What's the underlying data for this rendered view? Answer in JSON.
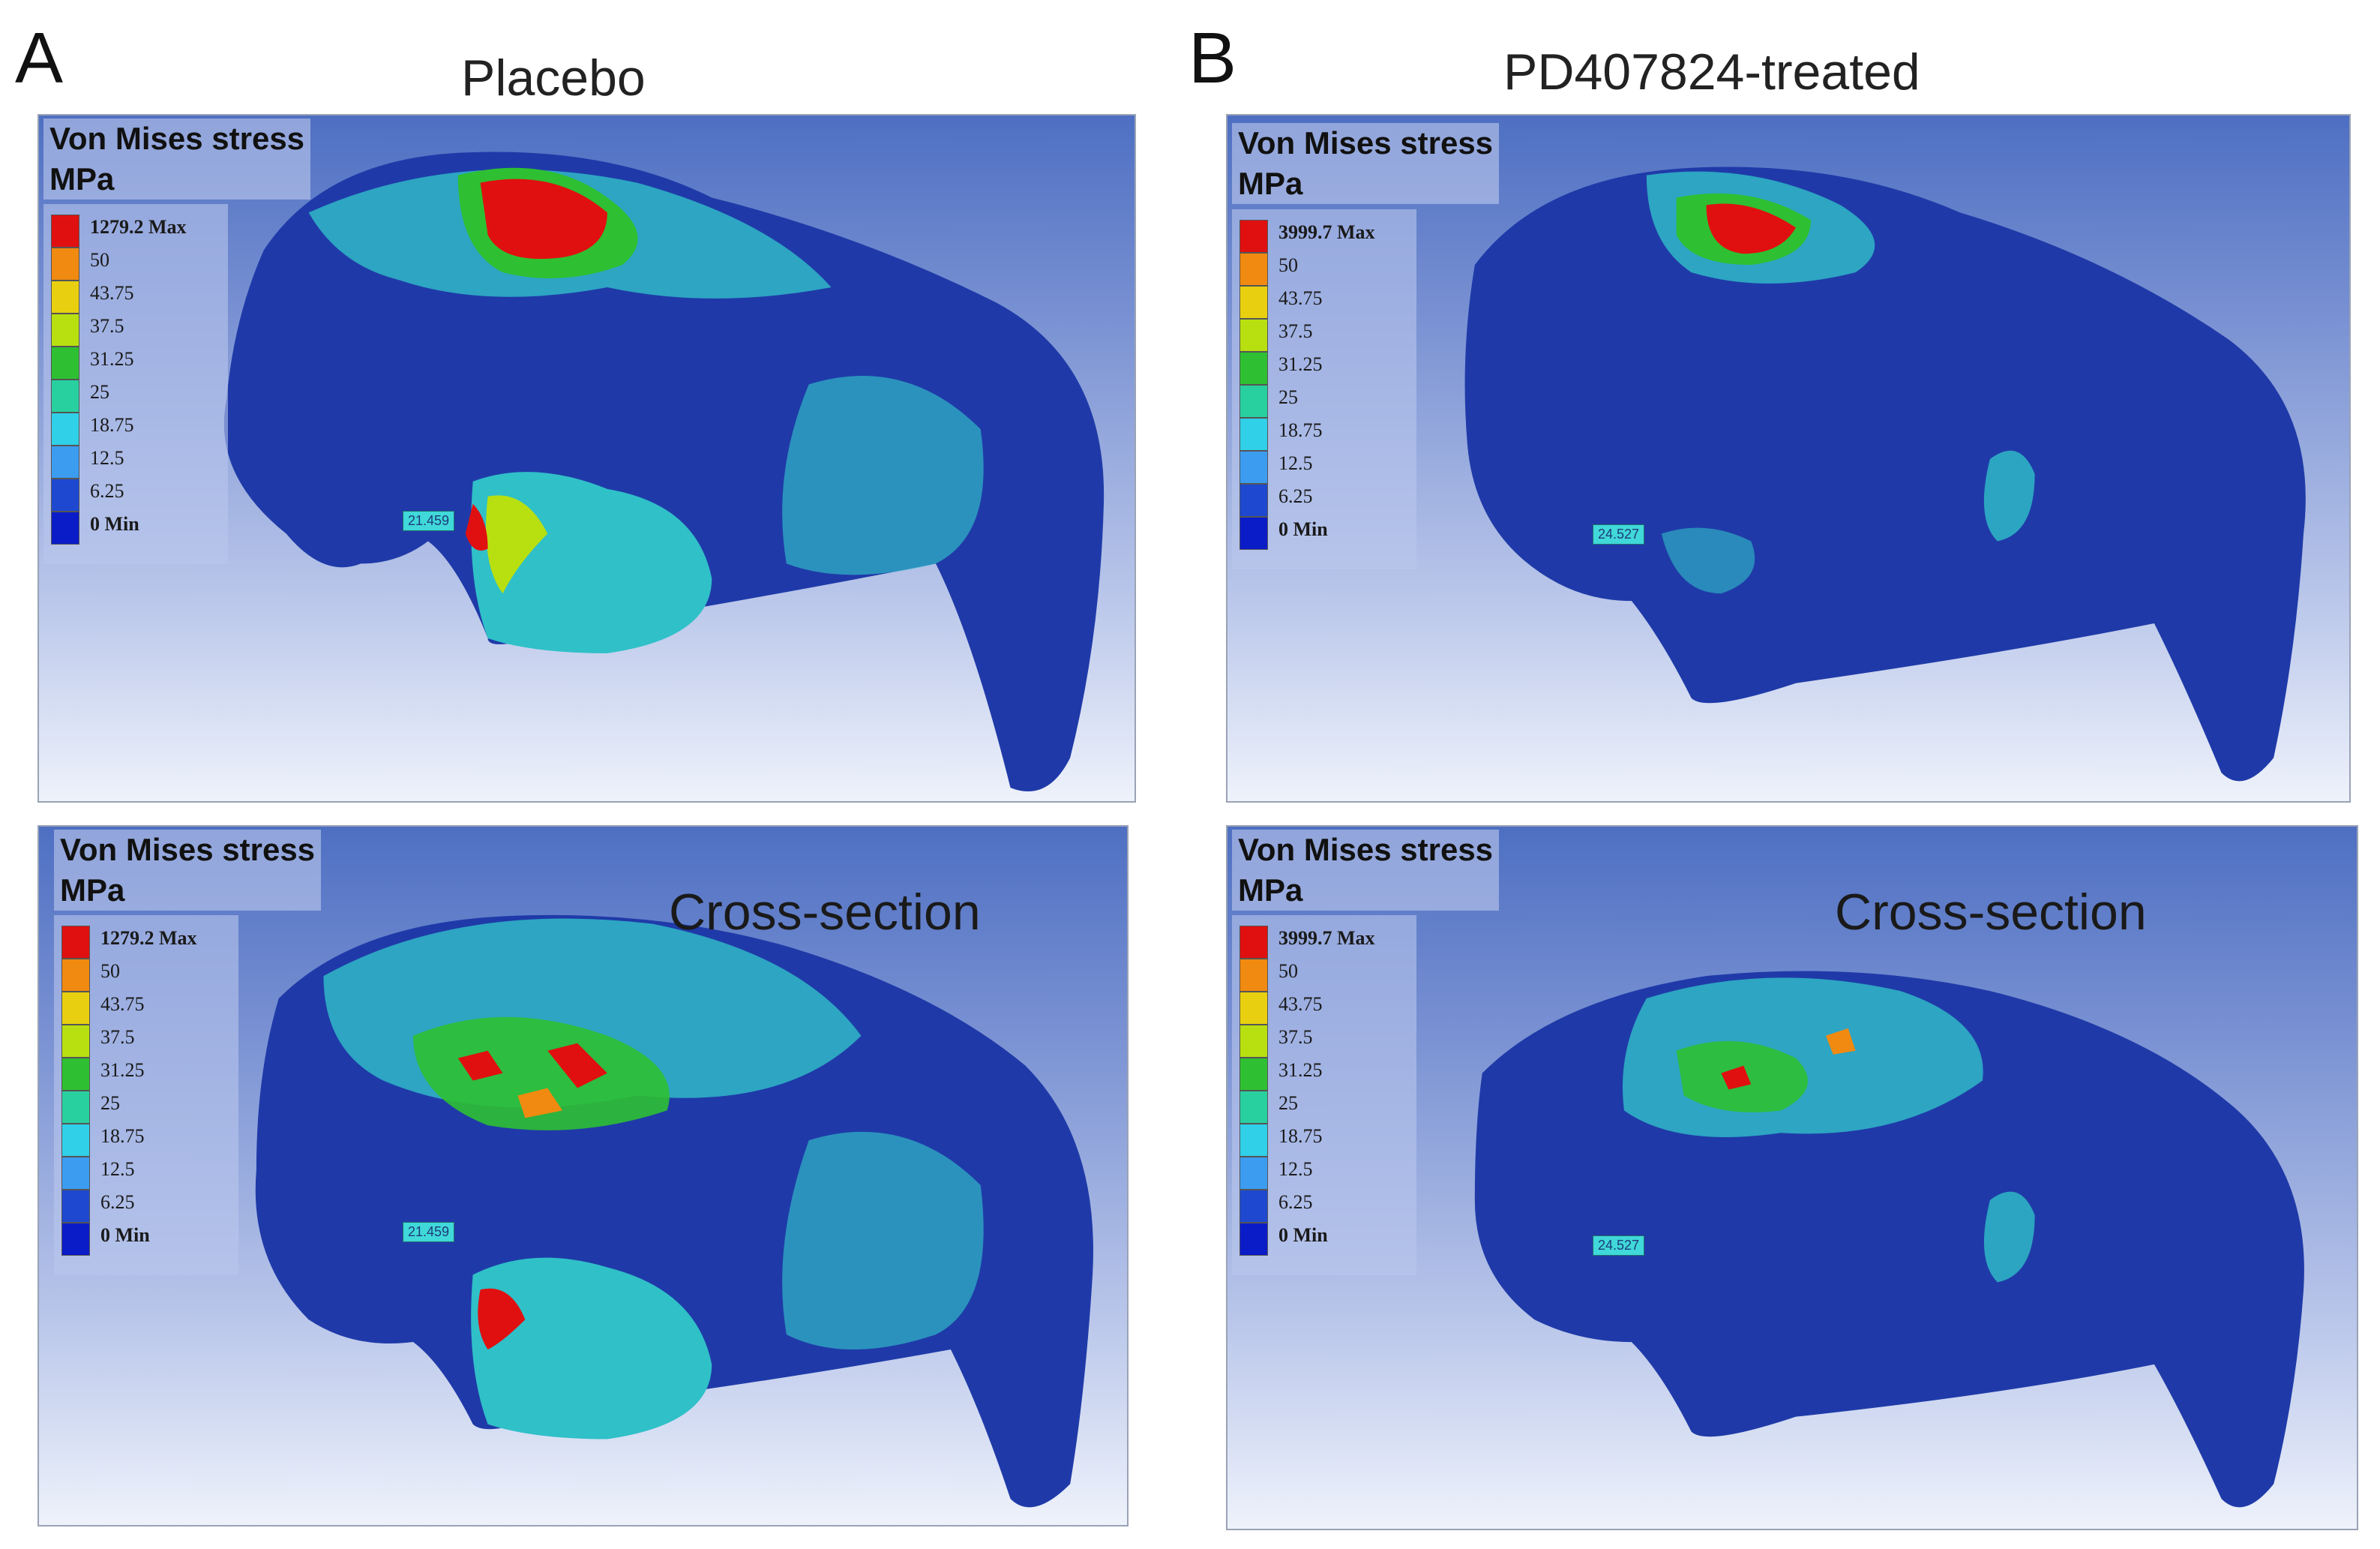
{
  "panels": {
    "a": {
      "letter": "A",
      "title": "Placebo",
      "probe_value": "21.459",
      "legend": {
        "title_line1": "Von Mises stress",
        "title_line2": "MPa",
        "max_label": "1279.2 Max",
        "labels": [
          "50",
          "43.75",
          "37.5",
          "31.25",
          "25",
          "18.75",
          "12.5",
          "6.25"
        ],
        "min_label": "0 Min"
      },
      "cross_section_label": "Cross-section"
    },
    "b": {
      "letter": "B",
      "title": "PD407824-treated",
      "probe_value": "24.527",
      "legend": {
        "title_line1": "Von Mises stress",
        "title_line2": "MPa",
        "max_label": "3999.7 Max",
        "labels": [
          "50",
          "43.75",
          "37.5",
          "31.25",
          "25",
          "18.75",
          "12.5",
          "6.25"
        ],
        "min_label": "0 Min"
      },
      "cross_section_label": "Cross-section"
    }
  },
  "colors": {
    "scale": [
      "#e01010",
      "#f08a10",
      "#e8d010",
      "#b8e010",
      "#2ec032",
      "#28d0a0",
      "#30d0e8",
      "#3c9cf0",
      "#1e48d0",
      "#0a1cc8"
    ],
    "bone_base": "#1f3aa8",
    "hotspot": "#e01010"
  }
}
